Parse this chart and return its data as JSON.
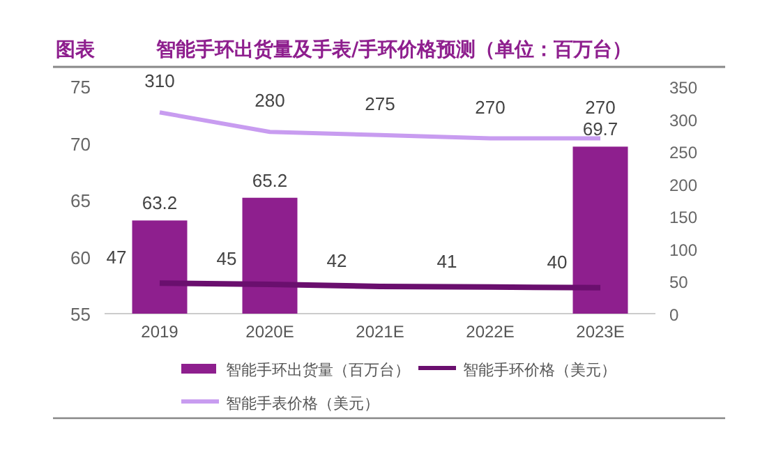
{
  "chart_data": {
    "type": "bar",
    "title": "智能手环出货量及手表/手环价格预测（单位：百万台）",
    "annotations": [
      "图表"
    ],
    "categories": [
      "2019",
      "2020E",
      "2021E",
      "2022E",
      "2023E"
    ],
    "series": [
      {
        "name": "智能手环出货量（百万台）",
        "color": "#8e1f8e",
        "values": [
          63.2,
          65.2,
          null,
          null,
          69.7
        ]
      },
      {
        "name": "智能手环价格（美元）",
        "type": "line",
        "axis": "y2",
        "color": "#6a0f6e",
        "values": [
          47,
          45,
          42,
          41,
          40
        ]
      },
      {
        "name": "智能手表价格（美元）",
        "type": "line",
        "axis": "y2",
        "color": "#c89cf0",
        "values": [
          310,
          280,
          275,
          270,
          270
        ]
      }
    ],
    "ylim": [
      55,
      75
    ],
    "yticks": [
      55,
      60,
      65,
      70,
      75
    ],
    "y2lim": [
      0,
      350
    ],
    "y2ticks": [
      0,
      50,
      100,
      150,
      200,
      250,
      300,
      350
    ],
    "data_labels": true,
    "legend": "bottom",
    "grid": false,
    "marker": "none"
  }
}
